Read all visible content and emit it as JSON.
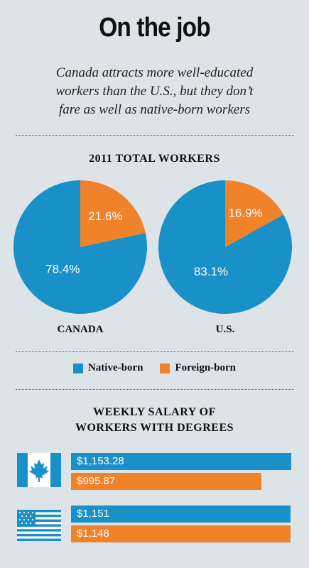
{
  "header": {
    "title": "On the job",
    "subtitle_lines": [
      "Canada attracts more well-educated",
      "workers than the U.S., but they don’t",
      "fare as well as native-born workers"
    ]
  },
  "colors": {
    "native": "#1a90c8",
    "foreign": "#f0822a",
    "background": "#dde4e8"
  },
  "chart_data": [
    {
      "type": "pie",
      "title": "2011 TOTAL WORKERS",
      "legend": [
        "Native-born",
        "Foreign-born"
      ],
      "pies": [
        {
          "label": "CANADA",
          "slices": [
            {
              "name": "Native-born",
              "value": 78.4,
              "label": "78.4%"
            },
            {
              "name": "Foreign-born",
              "value": 21.6,
              "label": "21.6%"
            }
          ]
        },
        {
          "label": "U.S.",
          "slices": [
            {
              "name": "Native-born",
              "value": 83.1,
              "label": "83.1%"
            },
            {
              "name": "Foreign-born",
              "value": 16.9,
              "label": "16.9%"
            }
          ]
        }
      ]
    },
    {
      "type": "bar",
      "orientation": "horizontal",
      "title_lines": [
        "WEEKLY SALARY OF",
        "WORKERS WITH DEGREES"
      ],
      "categories": [
        "Canada",
        "U.S."
      ],
      "category_icons": [
        "canada-flag-icon",
        "us-flag-icon"
      ],
      "series": [
        {
          "name": "Native-born",
          "values": [
            1153.28,
            1151
          ],
          "labels": [
            "$1,153.28",
            "$1,151"
          ]
        },
        {
          "name": "Foreign-born",
          "values": [
            995.87,
            1148
          ],
          "labels": [
            "$995.87",
            "$1,148"
          ]
        }
      ]
    }
  ]
}
